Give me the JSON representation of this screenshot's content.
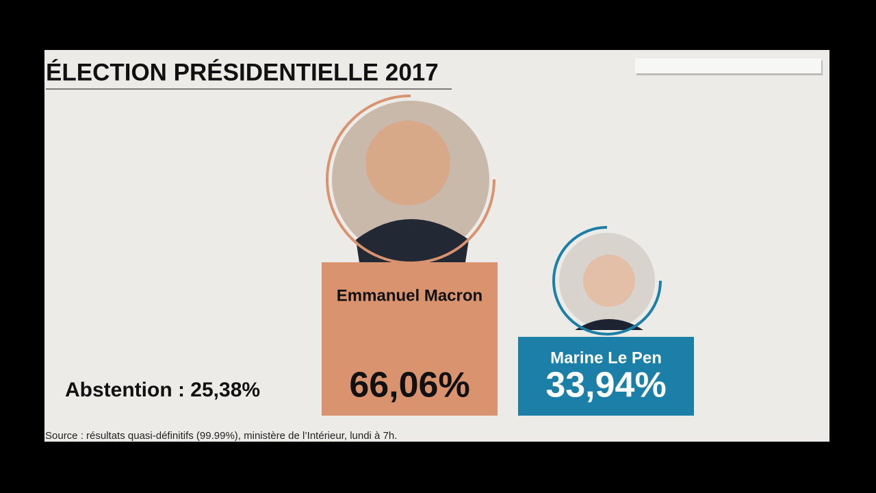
{
  "chart_data": {
    "type": "bar",
    "title": "ÉLECTION PRÉSIDENTIELLE 2017",
    "categories": [
      "Emmanuel Macron",
      "Marine Le Pen"
    ],
    "values": [
      66.06,
      33.94
    ],
    "value_labels": [
      "66,06%",
      "33,94%"
    ],
    "colors": [
      "#d9936f",
      "#1b7fa7"
    ],
    "annotations": [
      "Abstention : 25,38%"
    ],
    "source": "Source : résultats quasi-définitifs (99.99%), ministère de l’Intérieur, lundi à 7h."
  }
}
